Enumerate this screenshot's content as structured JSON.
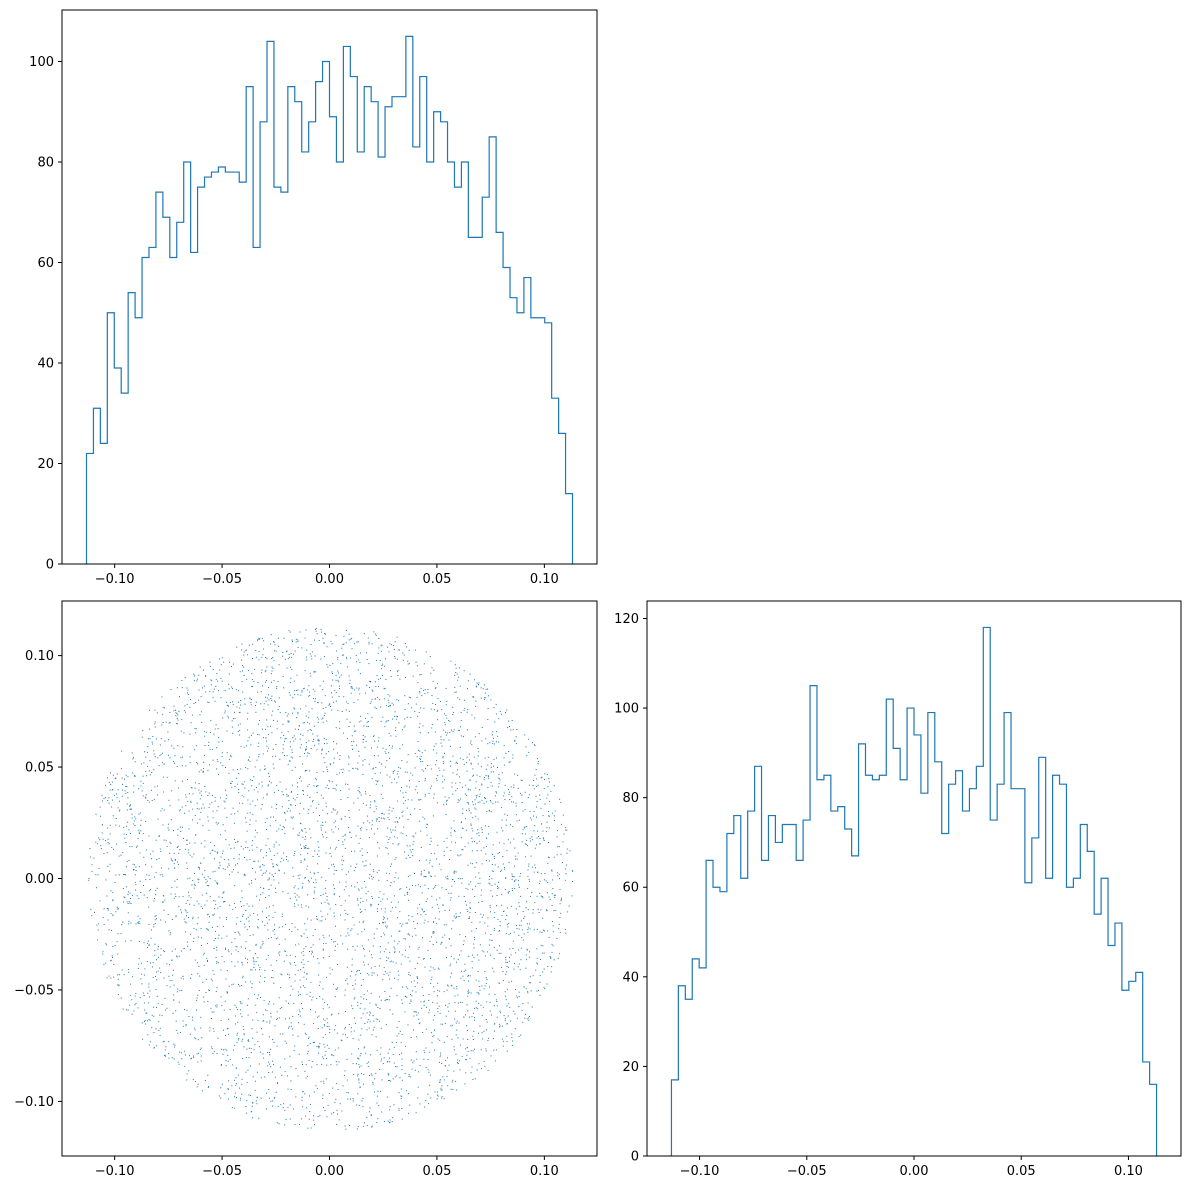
{
  "chart_data": [
    {
      "panel": "top-left",
      "type": "histogram",
      "histtype": "step",
      "color": "#1f77b4",
      "bin_start": -0.1131,
      "bin_end": 0.1131,
      "counts": [
        22,
        31,
        24,
        50,
        39,
        34,
        54,
        49,
        61,
        63,
        74,
        69,
        61,
        68,
        80,
        62,
        75,
        77,
        78,
        79,
        78,
        78,
        76,
        95,
        63,
        88,
        104,
        75,
        74,
        95,
        92,
        82,
        88,
        96,
        100,
        89,
        80,
        103,
        97,
        82,
        95,
        92,
        81,
        91,
        93,
        93,
        105,
        83,
        97,
        80,
        90,
        88,
        80,
        75,
        80,
        65,
        65,
        73,
        85,
        66,
        59,
        53,
        50,
        57,
        49,
        49,
        48,
        33,
        26,
        14
      ],
      "xlim": [
        -0.1245,
        0.1245
      ],
      "ylim": [
        0,
        110.25
      ],
      "xticks": [
        -0.1,
        -0.05,
        0.0,
        0.05,
        0.1
      ],
      "xtick_labels": [
        "−0.10",
        "−0.05",
        "0.00",
        "0.05",
        "0.10"
      ],
      "yticks": [
        0,
        20,
        40,
        60,
        80,
        100
      ],
      "ytick_labels": [
        "0",
        "20",
        "40",
        "60",
        "80",
        "100"
      ]
    },
    {
      "panel": "bottom-left",
      "type": "scatter",
      "color": "#1f77b4",
      "marker": "pixel",
      "shape": "disk",
      "radius": 0.1131,
      "n_points": 5000,
      "xlim": [
        -0.1245,
        0.1245
      ],
      "ylim": [
        -0.1245,
        0.1245
      ],
      "xticks": [
        -0.1,
        -0.05,
        0.0,
        0.05,
        0.1
      ],
      "xtick_labels": [
        "−0.10",
        "−0.05",
        "0.00",
        "0.05",
        "0.10"
      ],
      "yticks": [
        -0.1,
        -0.05,
        0.0,
        0.05,
        0.1
      ],
      "ytick_labels": [
        "−0.10",
        "−0.05",
        "0.00",
        "0.05",
        "0.10"
      ]
    },
    {
      "panel": "bottom-right",
      "type": "histogram",
      "histtype": "step",
      "color": "#1f77b4",
      "bin_start": -0.1131,
      "bin_end": 0.1131,
      "counts": [
        17,
        38,
        35,
        44,
        42,
        66,
        60,
        59,
        72,
        76,
        62,
        77,
        87,
        66,
        76,
        70,
        74,
        74,
        66,
        75,
        105,
        84,
        85,
        77,
        78,
        73,
        67,
        92,
        85,
        84,
        85,
        102,
        91,
        84,
        100,
        94,
        81,
        99,
        88,
        72,
        83,
        86,
        77,
        82,
        87,
        118,
        75,
        83,
        99,
        82,
        82,
        61,
        71,
        89,
        62,
        85,
        83,
        60,
        62,
        74,
        68,
        54,
        62,
        47,
        52,
        37,
        39,
        41,
        21,
        16
      ],
      "xlim": [
        -0.1245,
        0.1245
      ],
      "ylim": [
        0,
        123.9
      ],
      "xticks": [
        -0.1,
        -0.05,
        0.0,
        0.05,
        0.1
      ],
      "xtick_labels": [
        "−0.10",
        "−0.05",
        "0.00",
        "0.05",
        "0.10"
      ],
      "yticks": [
        0,
        20,
        40,
        60,
        80,
        100,
        120
      ],
      "ytick_labels": [
        "0",
        "20",
        "40",
        "60",
        "80",
        "100",
        "120"
      ]
    }
  ]
}
